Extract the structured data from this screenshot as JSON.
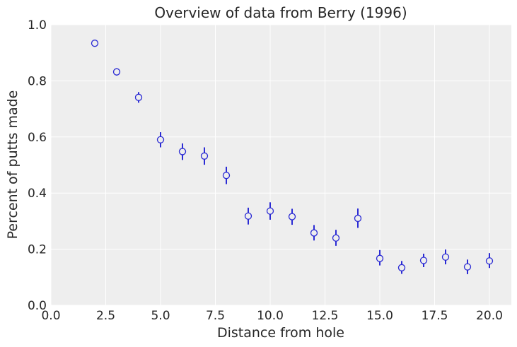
{
  "chart_data": {
    "type": "scatter",
    "title": "Overview of data from Berry (1996)",
    "xlabel": "Distance from hole",
    "ylabel": "Percent of putts made",
    "xlim": [
      0,
      21
    ],
    "ylim": [
      0,
      1.0
    ],
    "xticks": [
      0.0,
      2.5,
      5.0,
      7.5,
      10.0,
      12.5,
      15.0,
      17.5,
      20.0
    ],
    "xtick_labels": [
      "0.0",
      "2.5",
      "5.0",
      "7.5",
      "10.0",
      "12.5",
      "15.0",
      "17.5",
      "20.0"
    ],
    "yticks": [
      0.0,
      0.2,
      0.4,
      0.6,
      0.8,
      1.0
    ],
    "ytick_labels": [
      "0.0",
      "0.2",
      "0.4",
      "0.6",
      "0.8",
      "1.0"
    ],
    "grid": true,
    "marker": "open circle with vertical error bar",
    "colors": {
      "series": "#2b2bd4",
      "plot_background": "#eeeeee",
      "grid": "#ffffff"
    },
    "points": [
      {
        "x": 2,
        "y": 0.934,
        "err_low": 0.926,
        "err_high": 0.942
      },
      {
        "x": 3,
        "y": 0.832,
        "err_low": 0.819,
        "err_high": 0.845
      },
      {
        "x": 4,
        "y": 0.741,
        "err_low": 0.722,
        "err_high": 0.76
      },
      {
        "x": 5,
        "y": 0.59,
        "err_low": 0.563,
        "err_high": 0.617
      },
      {
        "x": 6,
        "y": 0.548,
        "err_low": 0.518,
        "err_high": 0.577
      },
      {
        "x": 7,
        "y": 0.532,
        "err_low": 0.501,
        "err_high": 0.563
      },
      {
        "x": 8,
        "y": 0.463,
        "err_low": 0.432,
        "err_high": 0.494
      },
      {
        "x": 9,
        "y": 0.318,
        "err_low": 0.288,
        "err_high": 0.348
      },
      {
        "x": 10,
        "y": 0.336,
        "err_low": 0.305,
        "err_high": 0.367
      },
      {
        "x": 11,
        "y": 0.316,
        "err_low": 0.287,
        "err_high": 0.344
      },
      {
        "x": 12,
        "y": 0.258,
        "err_low": 0.231,
        "err_high": 0.286
      },
      {
        "x": 13,
        "y": 0.24,
        "err_low": 0.212,
        "err_high": 0.269
      },
      {
        "x": 14,
        "y": 0.31,
        "err_low": 0.276,
        "err_high": 0.345
      },
      {
        "x": 15,
        "y": 0.167,
        "err_low": 0.142,
        "err_high": 0.197
      },
      {
        "x": 16,
        "y": 0.134,
        "err_low": 0.112,
        "err_high": 0.158
      },
      {
        "x": 17,
        "y": 0.16,
        "err_low": 0.136,
        "err_high": 0.184
      },
      {
        "x": 18,
        "y": 0.172,
        "err_low": 0.146,
        "err_high": 0.199
      },
      {
        "x": 19,
        "y": 0.137,
        "err_low": 0.111,
        "err_high": 0.163
      },
      {
        "x": 20,
        "y": 0.158,
        "err_low": 0.133,
        "err_high": 0.186
      }
    ]
  }
}
